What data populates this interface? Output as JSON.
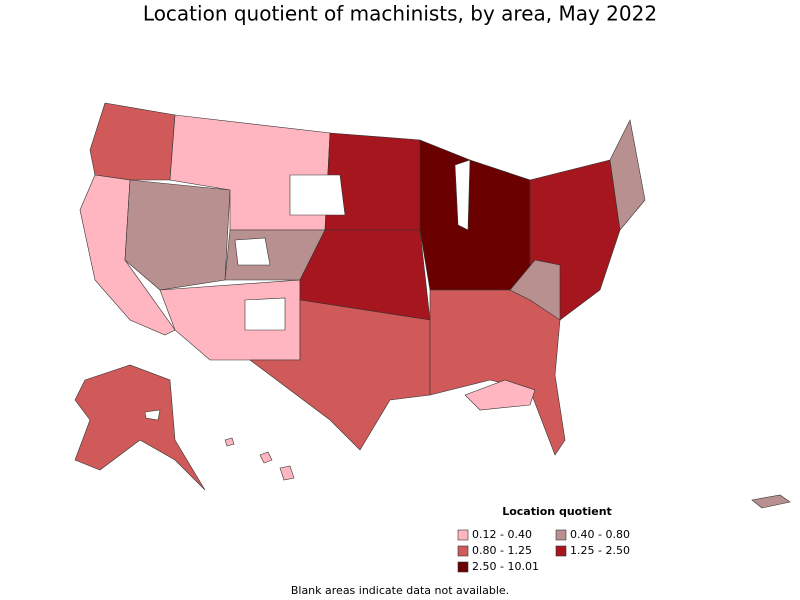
{
  "title": "Location quotient of machinists, by area, May 2022",
  "legend": {
    "title": "Location quotient",
    "items": [
      {
        "label": "0.12 - 0.40",
        "color": "#ffb6c1"
      },
      {
        "label": "0.40 - 0.80",
        "color": "#b99090"
      },
      {
        "label": "0.80 - 1.25",
        "color": "#d05a5a"
      },
      {
        "label": "1.25 - 2.50",
        "color": "#a5161e"
      },
      {
        "label": "2.50 - 10.01",
        "color": "#6b0000"
      }
    ]
  },
  "note": "Blank areas indicate data not available."
}
